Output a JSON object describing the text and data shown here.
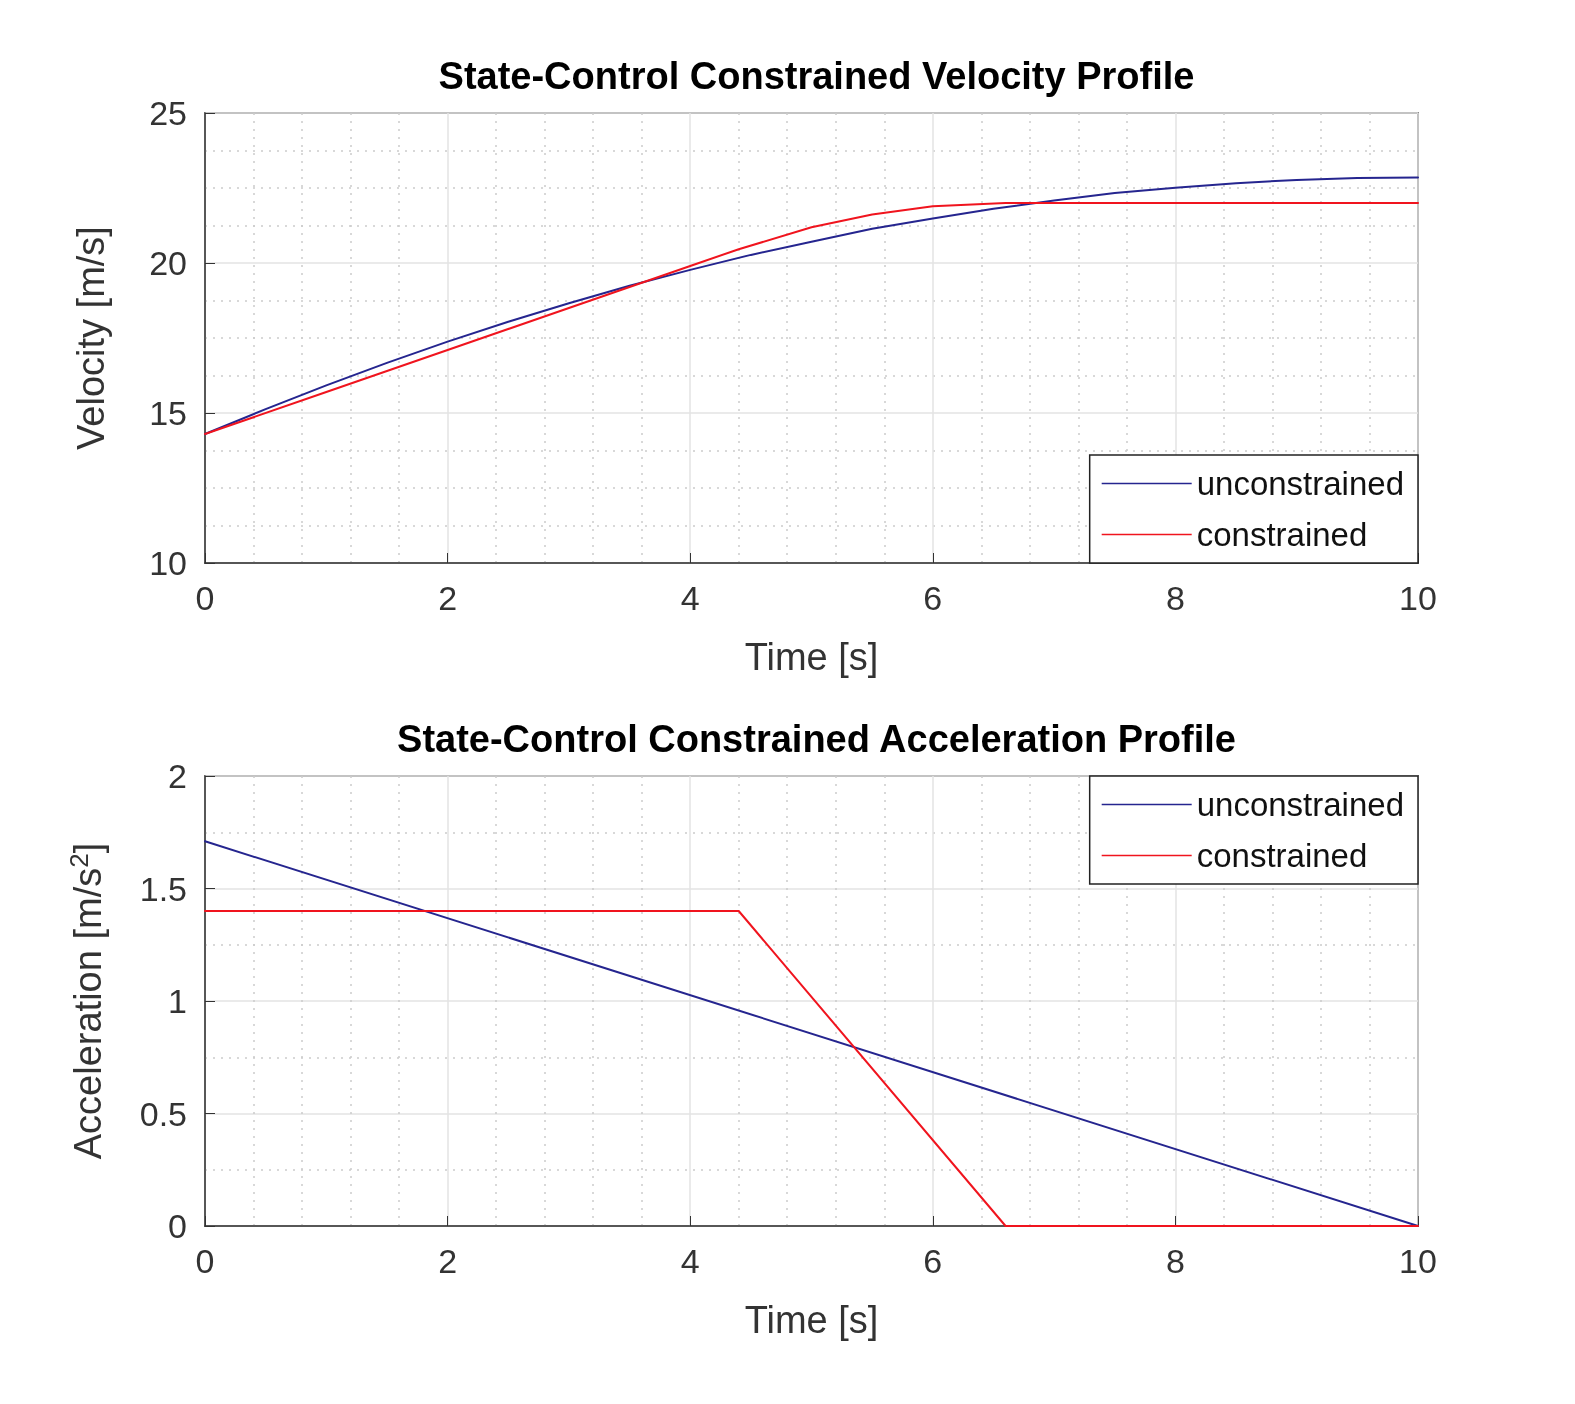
{
  "chart_data": [
    {
      "type": "line",
      "title": "State-Control Constrained Velocity Profile",
      "xlabel": "Time [s]",
      "ylabel": "Velocity [m/s]",
      "xlim": [
        0,
        10
      ],
      "xticks": [
        0,
        2,
        4,
        6,
        8,
        10
      ],
      "ylim": [
        10,
        25
      ],
      "yticks": [
        10,
        15,
        20,
        25
      ],
      "grid": true,
      "legend": "bottom right",
      "marker": "none",
      "series": [
        {
          "name": "unconstrained",
          "color": "#25258f",
          "x": [
            0,
            0.5,
            1,
            1.5,
            2,
            2.5,
            3,
            3.5,
            4,
            4.5,
            5,
            5.5,
            6,
            6.5,
            7,
            7.5,
            8,
            8.5,
            9,
            9.5,
            10
          ],
          "values": [
            14.3,
            15.13,
            15.92,
            16.67,
            17.38,
            18.04,
            18.66,
            19.24,
            19.77,
            20.27,
            20.71,
            21.14,
            21.48,
            21.81,
            22.08,
            22.33,
            22.51,
            22.66,
            22.77,
            22.83,
            22.85
          ]
        },
        {
          "name": "constrained",
          "color": "#f0141e",
          "x": [
            0,
            1,
            2,
            3,
            4,
            4.4,
            5,
            5.5,
            6,
            6.6,
            10
          ],
          "values": [
            14.3,
            15.7,
            17.1,
            18.5,
            19.9,
            20.46,
            21.19,
            21.62,
            21.89,
            22.0,
            22.0
          ]
        }
      ]
    },
    {
      "type": "line",
      "title": "State-Control Constrained Acceleration Profile",
      "xlabel": "Time [s]",
      "ylabel": "Acceleration [m/s$^{2}$]",
      "xlim": [
        0,
        10
      ],
      "xticks": [
        0,
        2,
        4,
        6,
        8,
        10
      ],
      "ylim": [
        0,
        2
      ],
      "yticks": [
        0,
        0.5,
        1,
        1.5,
        2
      ],
      "grid": true,
      "legend": "top right",
      "marker": "none",
      "series": [
        {
          "name": "unconstrained",
          "color": "#25258f",
          "x": [
            0,
            10
          ],
          "values": [
            1.71,
            0
          ]
        },
        {
          "name": "constrained",
          "color": "#f0141e",
          "x": [
            0,
            4.4,
            6.6,
            10
          ],
          "values": [
            1.4,
            1.4,
            0,
            0
          ]
        }
      ]
    }
  ]
}
